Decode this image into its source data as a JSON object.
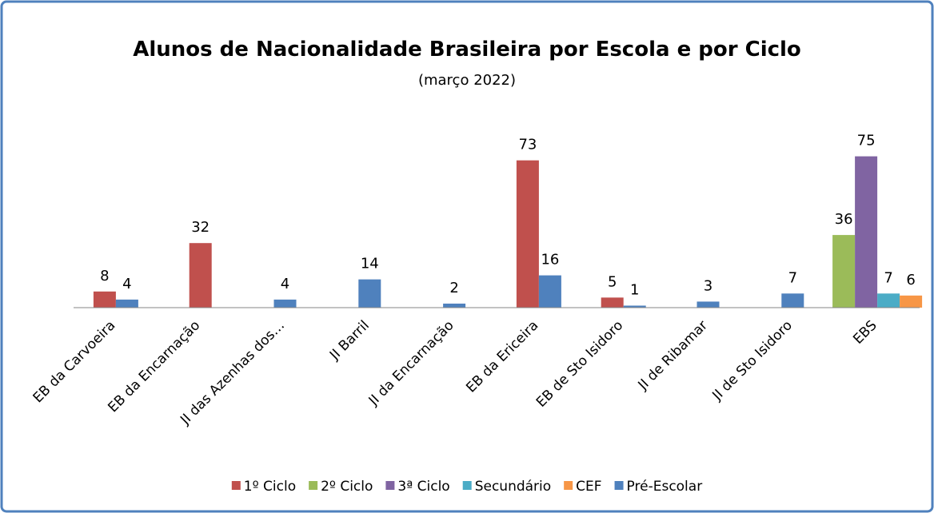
{
  "chart_data": {
    "type": "bar",
    "title": "Alunos de Nacionalidade Brasileira por Escola e por Ciclo",
    "subtitle": "(março 2022)",
    "categories": [
      "EB da Carvoeira",
      "EB da Encarnação",
      "JI das Azenhas dos…",
      "JI Barril",
      "JI da Encarnação",
      "EB da Ericeira",
      "EB de Sto Isidoro",
      "JI de Ribamar",
      "JI de Sto Isidoro",
      "EBS"
    ],
    "series": [
      {
        "name": "1º Ciclo",
        "color": "#c0504d",
        "values": [
          8,
          32,
          null,
          null,
          null,
          73,
          5,
          null,
          null,
          null
        ]
      },
      {
        "name": "2º Ciclo",
        "color": "#9bbb59",
        "values": [
          null,
          null,
          null,
          null,
          null,
          null,
          null,
          null,
          null,
          36
        ]
      },
      {
        "name": "3ª Ciclo",
        "color": "#8064a2",
        "values": [
          null,
          null,
          null,
          null,
          null,
          null,
          null,
          null,
          null,
          75
        ]
      },
      {
        "name": "Secundário",
        "color": "#4bacc6",
        "values": [
          null,
          null,
          null,
          null,
          null,
          null,
          null,
          null,
          null,
          7
        ]
      },
      {
        "name": "CEF",
        "color": "#f79646",
        "values": [
          null,
          null,
          null,
          null,
          null,
          null,
          null,
          null,
          null,
          6
        ]
      },
      {
        "name": "Pré-Escolar",
        "color": "#4f81bd",
        "values": [
          4,
          null,
          4,
          14,
          2,
          16,
          1,
          3,
          7,
          null
        ]
      }
    ],
    "ylim": [
      0,
      80
    ],
    "legend": "bottom"
  }
}
